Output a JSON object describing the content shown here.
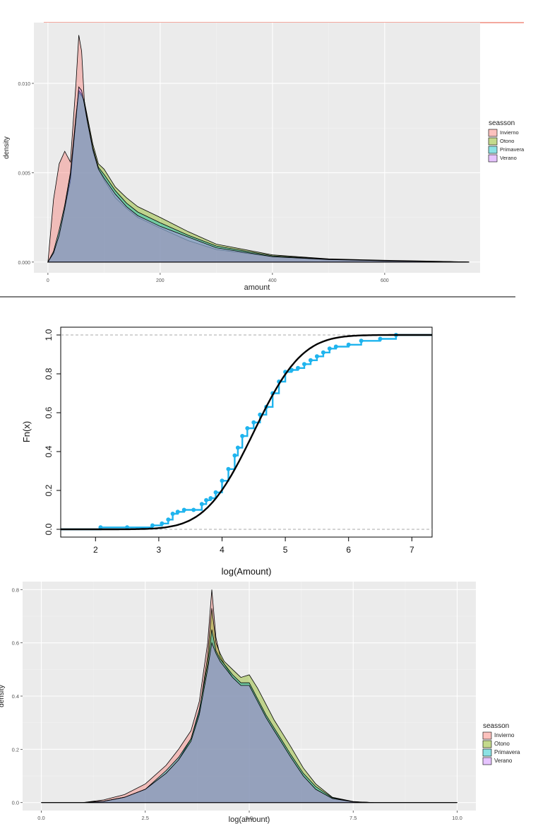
{
  "colors": {
    "panel_bg": "#ebebeb",
    "grid_major": "#ffffff",
    "Invierno": "#f8766d",
    "Otono": "#7cae00",
    "Primavera": "#00bfc4",
    "Verano": "#c77cff",
    "ecdf_points": "#1fb4ee",
    "fit_curve": "#000000",
    "separator_red": "#e8503c"
  },
  "chart_data": [
    {
      "type": "area",
      "xlabel": "amount",
      "ylabel": "density",
      "xlim": [
        -25,
        770
      ],
      "ylim": [
        -0.0006,
        0.0134
      ],
      "x_ticks": [
        0,
        200,
        400,
        600
      ],
      "x_tick_labels": [
        "0",
        "200",
        "400",
        "600"
      ],
      "y_ticks": [
        0.0,
        0.005,
        0.01
      ],
      "y_tick_labels": [
        "0.000",
        "0.005",
        "0.010"
      ],
      "grid": true,
      "legend": {
        "title": "seasson",
        "position": "right",
        "entries": [
          "Invierno",
          "Otono",
          "Primavera",
          "Verano"
        ]
      },
      "x": [
        0,
        10,
        20,
        30,
        40,
        50,
        55,
        60,
        65,
        70,
        80,
        90,
        100,
        120,
        140,
        160,
        180,
        200,
        250,
        300,
        400,
        500,
        600,
        700,
        750
      ],
      "series": [
        {
          "name": "Invierno",
          "values": [
            0.0,
            0.0035,
            0.0055,
            0.0062,
            0.0056,
            0.01,
            0.0127,
            0.0118,
            0.009,
            0.008,
            0.0062,
            0.0052,
            0.0046,
            0.0036,
            0.003,
            0.0025,
            0.0022,
            0.0019,
            0.0012,
            0.0007,
            0.0003,
            0.00015,
            8e-05,
            3e-05,
            0.0
          ]
        },
        {
          "name": "Otono",
          "values": [
            0.0,
            0.0005,
            0.0015,
            0.003,
            0.0045,
            0.008,
            0.0095,
            0.0093,
            0.009,
            0.0082,
            0.0066,
            0.0055,
            0.0052,
            0.0042,
            0.0036,
            0.0031,
            0.0028,
            0.0025,
            0.0017,
            0.001,
            0.0004,
            0.00018,
            0.0001,
            4e-05,
            0.0
          ]
        },
        {
          "name": "Primavera",
          "values": [
            0.0,
            0.0006,
            0.0018,
            0.0032,
            0.005,
            0.0082,
            0.0096,
            0.0094,
            0.009,
            0.008,
            0.0064,
            0.0053,
            0.0049,
            0.004,
            0.0033,
            0.0028,
            0.0025,
            0.0022,
            0.0015,
            0.0009,
            0.00035,
            0.00016,
            8e-05,
            3e-05,
            0.0
          ]
        },
        {
          "name": "Verano",
          "values": [
            0.0,
            0.0005,
            0.0015,
            0.003,
            0.0048,
            0.008,
            0.0098,
            0.0096,
            0.0088,
            0.0079,
            0.0063,
            0.0052,
            0.0047,
            0.0038,
            0.0031,
            0.0026,
            0.0023,
            0.002,
            0.0014,
            0.0008,
            0.0003,
            0.00014,
            7e-05,
            3e-05,
            0.0
          ]
        }
      ]
    },
    {
      "type": "line",
      "xlabel": "log(Amount)",
      "ylabel": "Fn(x)",
      "xlim": [
        1.45,
        7.32
      ],
      "ylim": [
        -0.04,
        1.04
      ],
      "x_ticks": [
        2,
        3,
        4,
        5,
        6,
        7
      ],
      "x_tick_labels": [
        "2",
        "3",
        "4",
        "5",
        "6",
        "7"
      ],
      "y_ticks": [
        0.0,
        0.2,
        0.4,
        0.6,
        0.8,
        1.0
      ],
      "y_tick_labels": [
        "0.0",
        "0.2",
        "0.4",
        "0.6",
        "0.8",
        "1.0"
      ],
      "grid": false,
      "reference_lines_y": [
        0.0,
        1.0
      ],
      "series": [
        {
          "kind": "ecdf",
          "x": [
            2.08,
            2.5,
            2.9,
            3.05,
            3.15,
            3.22,
            3.3,
            3.4,
            3.55,
            3.68,
            3.75,
            3.82,
            3.9,
            4.0,
            4.1,
            4.2,
            4.25,
            4.32,
            4.4,
            4.5,
            4.6,
            4.7,
            4.8,
            4.9,
            5.0,
            5.1,
            5.2,
            5.3,
            5.4,
            5.5,
            5.6,
            5.7,
            5.8,
            6.0,
            6.2,
            6.5,
            6.75
          ],
          "y": [
            0.01,
            0.01,
            0.02,
            0.03,
            0.05,
            0.08,
            0.09,
            0.1,
            0.1,
            0.13,
            0.15,
            0.16,
            0.19,
            0.25,
            0.31,
            0.38,
            0.42,
            0.48,
            0.52,
            0.55,
            0.59,
            0.63,
            0.7,
            0.76,
            0.81,
            0.82,
            0.83,
            0.85,
            0.87,
            0.89,
            0.91,
            0.93,
            0.94,
            0.95,
            0.97,
            0.98,
            1.0
          ]
        },
        {
          "kind": "fitted_cdf",
          "distribution": "normal",
          "mean": 4.5,
          "sd": 0.6
        }
      ]
    },
    {
      "type": "area",
      "xlabel": "log(amount)",
      "ylabel": "density",
      "xlim": [
        -0.45,
        10.45
      ],
      "ylim": [
        -0.03,
        0.83
      ],
      "x_ticks": [
        0.0,
        2.5,
        5.0,
        7.5,
        10.0
      ],
      "x_tick_labels": [
        "0.0",
        "2.5",
        "5.0",
        "7.5",
        "10.0"
      ],
      "y_ticks": [
        0.0,
        0.2,
        0.4,
        0.6,
        0.8
      ],
      "y_tick_labels": [
        "0.0",
        "0.2",
        "0.4",
        "0.6",
        "0.8"
      ],
      "grid": true,
      "legend": {
        "title": "seasson",
        "position": "right",
        "entries": [
          "Invierno",
          "Otono",
          "Primavera",
          "Verano"
        ]
      },
      "x": [
        0.0,
        1.0,
        1.5,
        2.0,
        2.5,
        3.0,
        3.3,
        3.6,
        3.8,
        4.0,
        4.1,
        4.2,
        4.3,
        4.4,
        4.6,
        4.8,
        5.0,
        5.2,
        5.4,
        5.6,
        5.8,
        6.0,
        6.3,
        6.6,
        7.0,
        7.5,
        8.0,
        10.0
      ],
      "series": [
        {
          "name": "Invierno",
          "values": [
            0.0,
            0.0,
            0.01,
            0.03,
            0.07,
            0.14,
            0.2,
            0.27,
            0.38,
            0.6,
            0.8,
            0.62,
            0.55,
            0.52,
            0.47,
            0.44,
            0.44,
            0.38,
            0.32,
            0.27,
            0.22,
            0.17,
            0.1,
            0.05,
            0.015,
            0.003,
            0.0,
            0.0
          ]
        },
        {
          "name": "Otono",
          "values": [
            0.0,
            0.0,
            0.005,
            0.02,
            0.05,
            0.11,
            0.16,
            0.24,
            0.34,
            0.55,
            0.73,
            0.6,
            0.56,
            0.53,
            0.5,
            0.47,
            0.48,
            0.43,
            0.37,
            0.31,
            0.26,
            0.21,
            0.13,
            0.07,
            0.02,
            0.004,
            0.0,
            0.0
          ]
        },
        {
          "name": "Primavera",
          "values": [
            0.0,
            0.0,
            0.005,
            0.02,
            0.05,
            0.12,
            0.17,
            0.24,
            0.35,
            0.52,
            0.65,
            0.57,
            0.54,
            0.52,
            0.48,
            0.45,
            0.45,
            0.39,
            0.33,
            0.28,
            0.23,
            0.18,
            0.11,
            0.06,
            0.018,
            0.003,
            0.0,
            0.0
          ]
        },
        {
          "name": "Verano",
          "values": [
            0.0,
            0.0,
            0.005,
            0.02,
            0.05,
            0.11,
            0.16,
            0.23,
            0.33,
            0.5,
            0.6,
            0.56,
            0.53,
            0.51,
            0.47,
            0.44,
            0.44,
            0.38,
            0.32,
            0.27,
            0.22,
            0.17,
            0.1,
            0.05,
            0.015,
            0.003,
            0.0,
            0.0
          ]
        }
      ]
    }
  ]
}
